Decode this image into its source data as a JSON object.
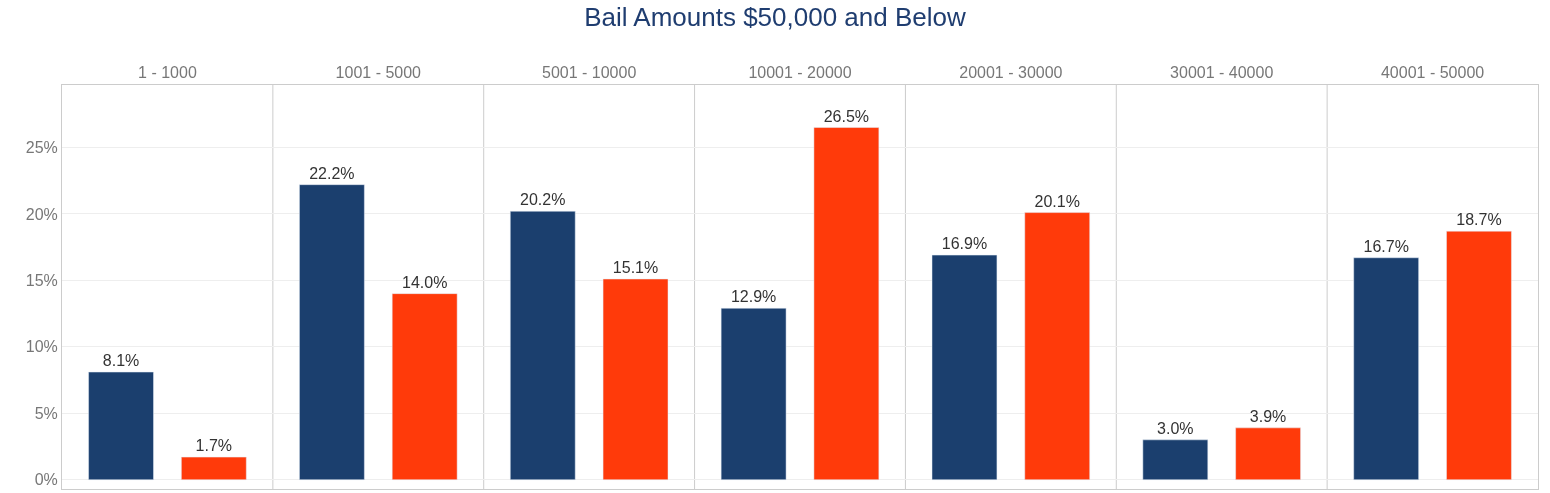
{
  "chart_data": {
    "type": "bar",
    "title": "Bail Amounts $50,000 and Below",
    "categories": [
      "1 - 1000",
      "1001 - 5000",
      "5001 - 10000",
      "10001 - 20000",
      "20001 - 30000",
      "30001 - 40000",
      "40001 - 50000"
    ],
    "series": [
      {
        "color": "#1b3f6e",
        "values": [
          8.1,
          22.2,
          20.2,
          12.9,
          16.9,
          3.0,
          16.7
        ],
        "value_labels": [
          "8.1%",
          "22.2%",
          "20.2%",
          "12.9%",
          "16.9%",
          "3.0%",
          "16.7%"
        ]
      },
      {
        "color": "#ff3a0a",
        "values": [
          1.7,
          14.0,
          15.1,
          26.5,
          20.1,
          3.9,
          18.7
        ],
        "value_labels": [
          "1.7%",
          "14.0%",
          "15.1%",
          "26.5%",
          "20.1%",
          "3.9%",
          "18.7%"
        ]
      }
    ],
    "ylim": [
      -0.7,
      29.7
    ],
    "yticks": [
      {
        "value": 0,
        "label": "0%"
      },
      {
        "value": 5,
        "label": "5%"
      },
      {
        "value": 10,
        "label": "10%"
      },
      {
        "value": 15,
        "label": "15%"
      },
      {
        "value": 20,
        "label": "20%"
      },
      {
        "value": 25,
        "label": "25%"
      }
    ],
    "grid": true
  }
}
